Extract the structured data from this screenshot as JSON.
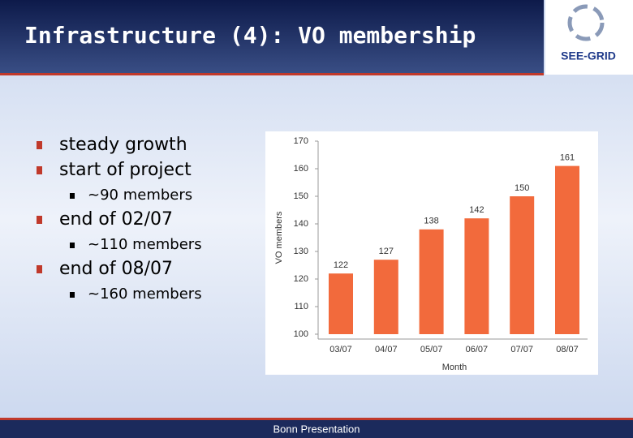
{
  "slide": {
    "title": "Infrastructure (4): VO membership",
    "logo": "SEE-GRID",
    "footer": "Bonn Presentation",
    "bullets": [
      {
        "text": "steady growth"
      },
      {
        "text": "start of project",
        "sub": [
          "~90 members"
        ]
      },
      {
        "text": "end of 02/07",
        "sub": [
          "~110 members"
        ]
      },
      {
        "text": "end of 08/07",
        "sub": [
          "~160 members"
        ]
      }
    ]
  },
  "chart_data": {
    "type": "bar",
    "categories": [
      "03/07",
      "04/07",
      "05/07",
      "06/07",
      "07/07",
      "08/07"
    ],
    "values": [
      122,
      127,
      138,
      142,
      150,
      161
    ],
    "color": "#f26a3c",
    "xlabel": "Month",
    "ylabel": "VO members",
    "ylim": [
      100,
      170
    ],
    "yticks": [
      100,
      110,
      120,
      130,
      140,
      150,
      160,
      170
    ],
    "grid": false
  }
}
